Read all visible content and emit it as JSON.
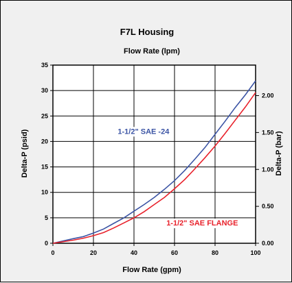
{
  "chart_data": {
    "type": "line",
    "title": "F7L Housing",
    "x2label": "Flow Rate (lpm)",
    "xlabel": "Flow Rate (gpm)",
    "ylabel": "Delta-P (psid)",
    "y2label": "Delta-P (bar)",
    "xlim": [
      0,
      100
    ],
    "ylim": [
      0,
      35
    ],
    "y2lim": [
      0,
      2.4132
    ],
    "grid": true,
    "legend": "none",
    "x_ticks": [
      "0",
      "20",
      "40",
      "60",
      "80",
      "100"
    ],
    "y_ticks": [
      "0",
      "5",
      "10",
      "15",
      "20",
      "25",
      "30",
      "35"
    ],
    "y2_ticks": [
      "0.00",
      "0.50",
      "1.00",
      "1.50",
      "2.00"
    ],
    "series": [
      {
        "name": "1-1/2\" SAE -24",
        "color": "#3a53a4",
        "x": [
          0,
          10,
          15,
          20,
          25,
          30,
          35,
          40,
          45,
          50,
          55,
          60,
          65,
          70,
          75,
          80,
          85,
          90,
          95,
          100
        ],
        "y": [
          0,
          0.9,
          1.3,
          2.0,
          2.8,
          3.9,
          5.0,
          6.3,
          7.6,
          9.0,
          10.6,
          12.3,
          14.3,
          16.5,
          18.8,
          21.4,
          24.0,
          26.7,
          29.2,
          31.9
        ]
      },
      {
        "name": "1-1/2\" SAE FLANGE",
        "color": "#e8202a",
        "x": [
          0,
          10,
          15,
          20,
          25,
          30,
          35,
          40,
          45,
          50,
          55,
          60,
          65,
          70,
          75,
          80,
          85,
          90,
          95,
          100
        ],
        "y": [
          0,
          0.6,
          1.0,
          1.5,
          2.1,
          3.0,
          4.0,
          5.0,
          6.2,
          7.6,
          9.0,
          10.7,
          12.5,
          14.6,
          16.8,
          19.1,
          21.6,
          24.2,
          26.8,
          29.6
        ]
      }
    ],
    "annotations": [
      {
        "text": "1-1/2\" SAE -24",
        "color": "#3a53a4",
        "x": 32,
        "y": 21.5
      },
      {
        "text": "1-1/2\" SAE FLANGE",
        "color": "#e8202a",
        "x": 56,
        "y": 3.5
      }
    ]
  }
}
